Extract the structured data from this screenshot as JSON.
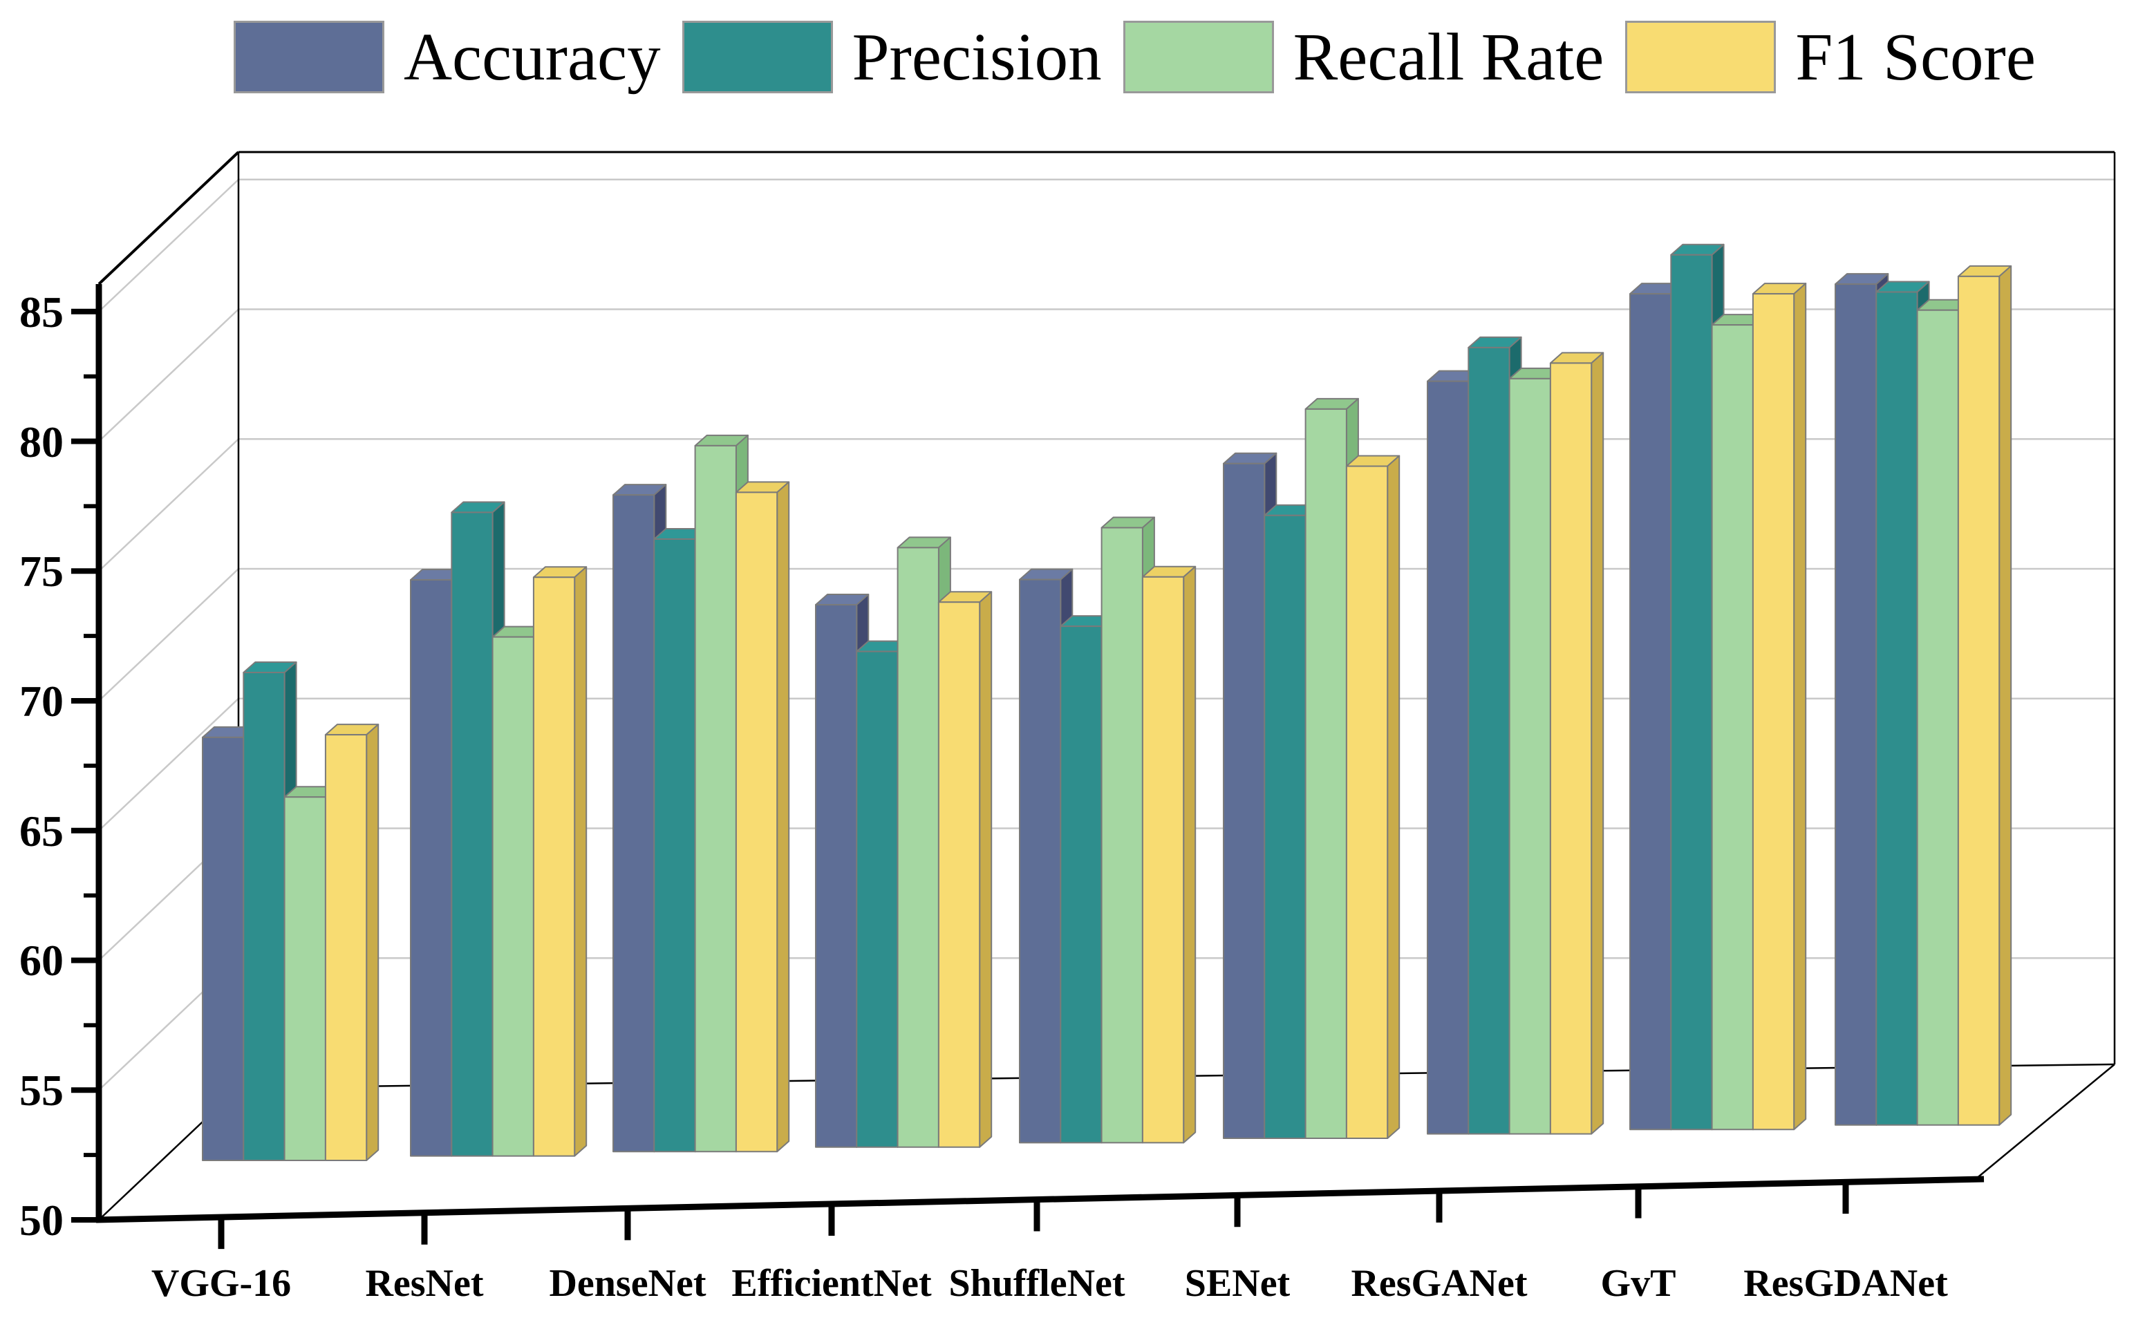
{
  "chart_data": {
    "type": "bar",
    "projection": "3d",
    "title": "",
    "xlabel": "",
    "ylabel": "",
    "ylim": [
      50,
      86
    ],
    "yticks": [
      50,
      55,
      60,
      65,
      70,
      75,
      80,
      85
    ],
    "ytick_labels": [
      "50",
      "55",
      "60",
      "65",
      "70",
      "75",
      "80",
      "85"
    ],
    "minor_tick_step": 2.5,
    "grid": "on",
    "legend_position": "top",
    "categories": [
      "VGG-16",
      "ResNet",
      "DenseNet",
      "EfficientNet",
      "ShuffleNet",
      "SENet",
      "ResGANet",
      "GvT",
      "ResGDANet"
    ],
    "series": [
      {
        "name": "Accuracy",
        "color": "#5E6E96",
        "color_top": "#6B7BA4",
        "color_side": "#414970",
        "values": [
          66.3,
          72.2,
          75.3,
          70.9,
          71.7,
          76.0,
          79.0,
          82.2,
          82.4
        ]
      },
      {
        "name": "Precision",
        "color": "#2E8E8D",
        "color_top": "#2F9897",
        "color_side": "#1C6B6C",
        "values": [
          68.8,
          74.8,
          73.6,
          69.1,
          69.9,
          74.0,
          80.3,
          83.7,
          82.1
        ]
      },
      {
        "name": "Recall Rate",
        "color": "#A5D7A2",
        "color_top": "#90C78D",
        "color_side": "#7CB77B",
        "values": [
          64.0,
          70.0,
          77.2,
          73.1,
          73.7,
          78.1,
          79.1,
          81.0,
          81.4
        ]
      },
      {
        "name": "F1 Score",
        "color": "#F8DC72",
        "color_top": "#EDD164",
        "color_side": "#C9AC4A",
        "values": [
          66.4,
          72.3,
          75.4,
          71.0,
          71.8,
          75.9,
          79.7,
          82.2,
          82.7
        ]
      }
    ],
    "axis_color": "#000000",
    "gridline_color": "#c9c9c9",
    "bar_outline_color": "#7a7a7a"
  }
}
